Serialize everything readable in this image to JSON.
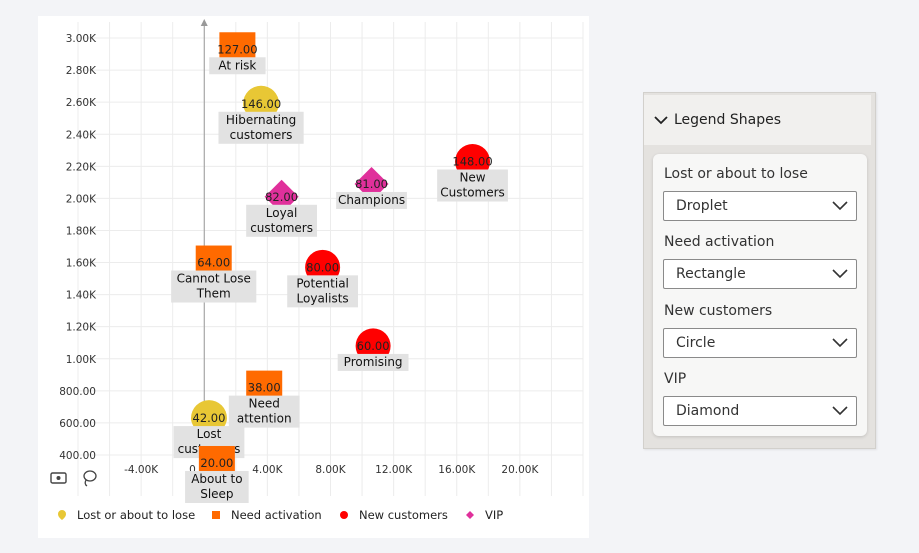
{
  "chart_data": {
    "type": "scatter",
    "x_axis": {
      "ticks": [
        "-4.00K",
        "0.00K",
        "4.00K",
        "8.00K",
        "12.00K",
        "16.00K",
        "20.00K"
      ],
      "range": [
        -8000,
        24000
      ]
    },
    "y_axis": {
      "ticks": [
        "400.00",
        "600.00",
        "800.00",
        "1.00K",
        "1.20K",
        "1.40K",
        "1.60K",
        "1.80K",
        "2.00K",
        "2.20K",
        "2.40K",
        "2.60K",
        "2.80K",
        "3.00K"
      ],
      "range": [
        300,
        3100
      ]
    },
    "grid": true,
    "legend_position": "bottom-left",
    "series": [
      {
        "name": "Lost or about to lose",
        "shape": "droplet",
        "color": "#e8c735",
        "points": [
          {
            "x": 3600,
            "y": 2590,
            "value": "146.00",
            "label": "Hibernating customers",
            "label_lines": [
              "Hibernating",
              "customers"
            ]
          },
          {
            "x": 300,
            "y": 630,
            "value": "42.00",
            "label": "Lost customers",
            "label_lines": [
              "Lost",
              "customers"
            ]
          }
        ]
      },
      {
        "name": "Need activation",
        "shape": "rectangle",
        "color": "#ff6a00",
        "points": [
          {
            "x": 2100,
            "y": 2930,
            "value": "127.00",
            "label": "At risk",
            "label_lines": [
              "At risk"
            ]
          },
          {
            "x": 600,
            "y": 1600,
            "value": "64.00",
            "label": "Cannot Lose Them",
            "label_lines": [
              "Cannot Lose",
              "Them"
            ]
          },
          {
            "x": 3800,
            "y": 820,
            "value": "38.00",
            "label": "Need attention",
            "label_lines": [
              "Need",
              "attention"
            ]
          },
          {
            "x": 800,
            "y": 350,
            "value": "20.00",
            "label": "About to Sleep",
            "label_lines": [
              "About to",
              "Sleep"
            ]
          }
        ]
      },
      {
        "name": "New customers",
        "shape": "circle",
        "color": "#ff0000",
        "points": [
          {
            "x": 17000,
            "y": 2230,
            "value": "148.00",
            "label": "New Customers",
            "label_lines": [
              "New",
              "Customers"
            ]
          },
          {
            "x": 7500,
            "y": 1570,
            "value": "80.00",
            "label": "Potential Loyalists",
            "label_lines": [
              "Potential",
              "Loyalists"
            ]
          },
          {
            "x": 10700,
            "y": 1080,
            "value": "60.00",
            "label": "Promising",
            "label_lines": [
              "Promising"
            ]
          }
        ]
      },
      {
        "name": "VIP",
        "shape": "diamond",
        "color": "#e0309b",
        "points": [
          {
            "x": 4900,
            "y": 2010,
            "value": "82.00",
            "label": "Loyal customers",
            "label_lines": [
              "Loyal",
              "customers"
            ]
          },
          {
            "x": 10600,
            "y": 2090,
            "value": "81.00",
            "label": "Champions",
            "label_lines": [
              "Champions"
            ]
          }
        ]
      }
    ]
  },
  "toolbar": {
    "focus_icon": "focus-mode-icon",
    "lasso_icon": "lasso-select-icon"
  },
  "panel": {
    "title": "Legend Shapes",
    "fields": [
      {
        "label": "Lost or about to lose",
        "value": "Droplet"
      },
      {
        "label": "Need activation",
        "value": "Rectangle"
      },
      {
        "label": "New customers",
        "value": "Circle"
      },
      {
        "label": "VIP",
        "value": "Diamond"
      }
    ]
  }
}
